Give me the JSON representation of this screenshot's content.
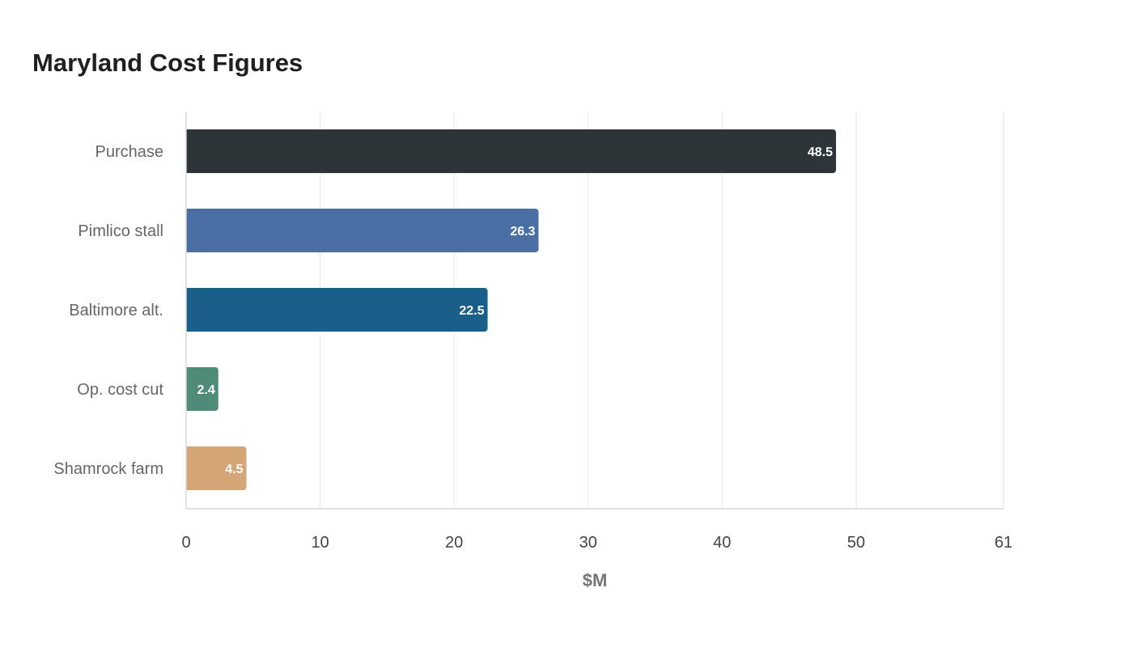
{
  "chart_data": {
    "type": "bar",
    "orientation": "horizontal",
    "title": "Maryland Cost Figures",
    "xlabel": "$M",
    "ylabel": "",
    "categories": [
      "Purchase",
      "Pimlico stall",
      "Baltimore alt.",
      "Op. cost cut",
      "Shamrock farm"
    ],
    "values": [
      48.5,
      26.3,
      22.5,
      2.4,
      4.5
    ],
    "colors": [
      "#2e3538",
      "#4a6fa5",
      "#185f89",
      "#4e8b78",
      "#d4a677"
    ],
    "xlim": [
      0,
      61
    ],
    "xticks": [
      0,
      10,
      20,
      30,
      40,
      50,
      61
    ],
    "grid": true,
    "legend": "none"
  }
}
